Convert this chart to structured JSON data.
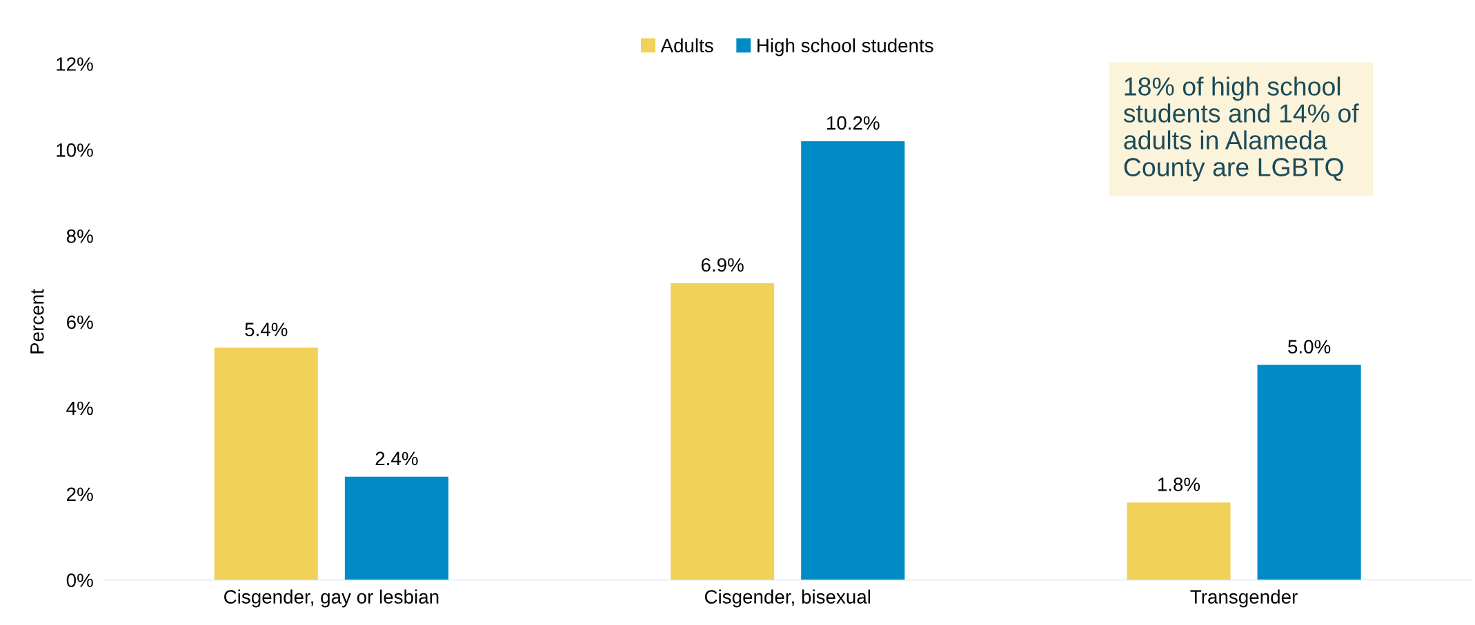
{
  "chart_data": {
    "type": "bar",
    "ylabel": "Percent",
    "categories": [
      "Cisgender, gay or lesbian",
      "Cisgender, bisexual",
      "Transgender"
    ],
    "series": [
      {
        "name": "Adults",
        "color": "#f2d158",
        "values": [
          5.4,
          6.9,
          1.8
        ],
        "value_labels": [
          "5.4%",
          "6.9%",
          "1.8%"
        ]
      },
      {
        "name": "High school students",
        "color": "#008bc6",
        "values": [
          2.4,
          10.2,
          5.0
        ],
        "value_labels": [
          "2.4%",
          "10.2%",
          "5.0%"
        ]
      }
    ],
    "ylim": [
      0,
      12
    ],
    "yticks": [
      {
        "value": 0,
        "label": "0%"
      },
      {
        "value": 2,
        "label": "2%"
      },
      {
        "value": 4,
        "label": "4%"
      },
      {
        "value": 6,
        "label": "6%"
      },
      {
        "value": 8,
        "label": "8%"
      },
      {
        "value": 10,
        "label": "10%"
      },
      {
        "value": 12,
        "label": "12%"
      }
    ],
    "grid": false,
    "legend": "top",
    "annotations": [
      "18% of high school\nstudents and 14% of\nadults in Alameda\nCounty are LGBTQ"
    ]
  }
}
